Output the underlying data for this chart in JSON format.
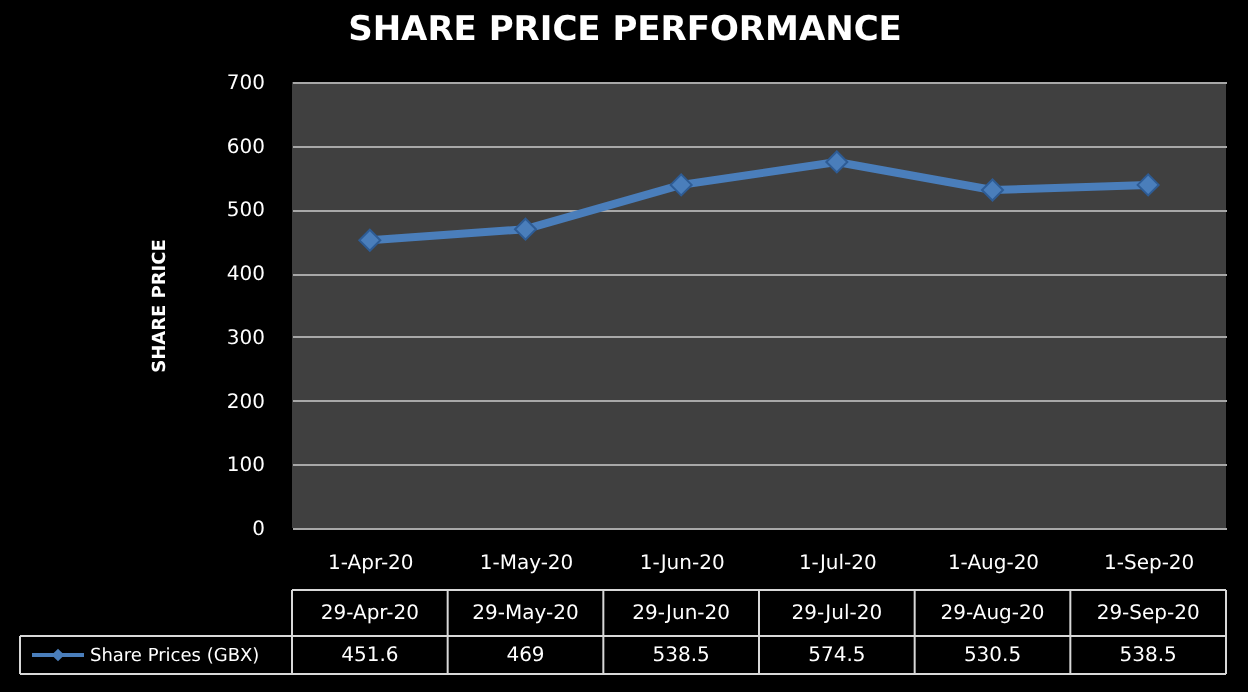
{
  "chart_data": {
    "type": "line",
    "title": "SHARE PRICE PERFORMANCE",
    "ylabel": "SHARE PRICE",
    "categories": [
      "1-Apr-20",
      "1-May-20",
      "1-Jun-20",
      "1-Jul-20",
      "1-Aug-20",
      "1-Sep-20"
    ],
    "series": [
      {
        "name": "Share Prices (GBX)",
        "color": "#4a7ebb",
        "values": [
          451.6,
          469,
          538.5,
          574.5,
          530.5,
          538.5
        ]
      }
    ],
    "ylim": [
      0,
      700
    ],
    "yticks": [
      0,
      100,
      200,
      300,
      400,
      500,
      600,
      700
    ],
    "grid": "y",
    "marker": "diamond",
    "line_style": "solid",
    "data_labels": true,
    "legend": "bottom left",
    "annotations": [
      "29-Apr-20",
      "29-May-20",
      "29-Jun-20",
      "29-Jul-20",
      "29-Aug-20",
      "29-Sep-20"
    ]
  }
}
